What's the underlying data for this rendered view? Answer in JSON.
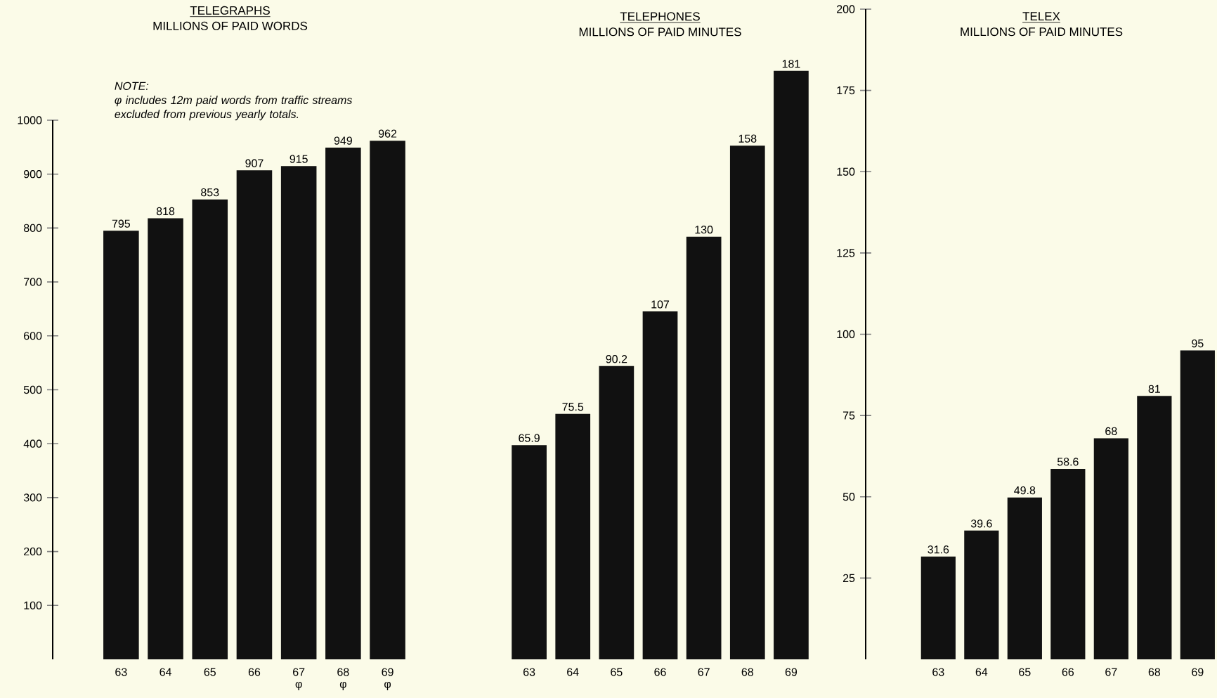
{
  "chart_data": [
    {
      "type": "bar",
      "title": "TELEGRAPHS",
      "subtitle": "MILLIONS OF PAID WORDS",
      "categories": [
        "63",
        "64",
        "65",
        "66",
        "67 φ",
        "68 φ",
        "69 φ"
      ],
      "values": [
        795,
        818,
        853,
        907,
        915,
        949,
        962
      ],
      "color": "#111111",
      "data_labels": true,
      "ylim": [
        0,
        1000
      ],
      "yticks": [
        100,
        200,
        300,
        400,
        500,
        600,
        700,
        800,
        900,
        1000
      ],
      "annotations": [
        "NOTE:",
        "φ includes 12m paid words from traffic streams excluded from previous yearly totals."
      ]
    },
    {
      "type": "bar",
      "title": "TELEPHONES",
      "subtitle": "MILLIONS OF PAID MINUTES",
      "categories": [
        "63",
        "64",
        "65",
        "66",
        "67",
        "68",
        "69"
      ],
      "values": [
        65.9,
        75.5,
        90.2,
        107,
        130,
        158,
        181
      ],
      "data_labels": true,
      "color": "#111111",
      "ylim": [
        0,
        200
      ],
      "tick_labels": "x"
    },
    {
      "type": "bar",
      "title": "TELEX",
      "subtitle": "MILLIONS OF PAID MINUTES",
      "categories": [
        "63",
        "64",
        "65",
        "66",
        "67",
        "68",
        "69"
      ],
      "values": [
        31.6,
        39.6,
        49.8,
        58.6,
        68,
        81,
        95
      ],
      "data_labels": true,
      "color": "#111111",
      "ylim": [
        0,
        200
      ],
      "yticks": [
        25,
        50,
        75,
        100,
        125,
        150,
        175,
        200
      ]
    }
  ]
}
